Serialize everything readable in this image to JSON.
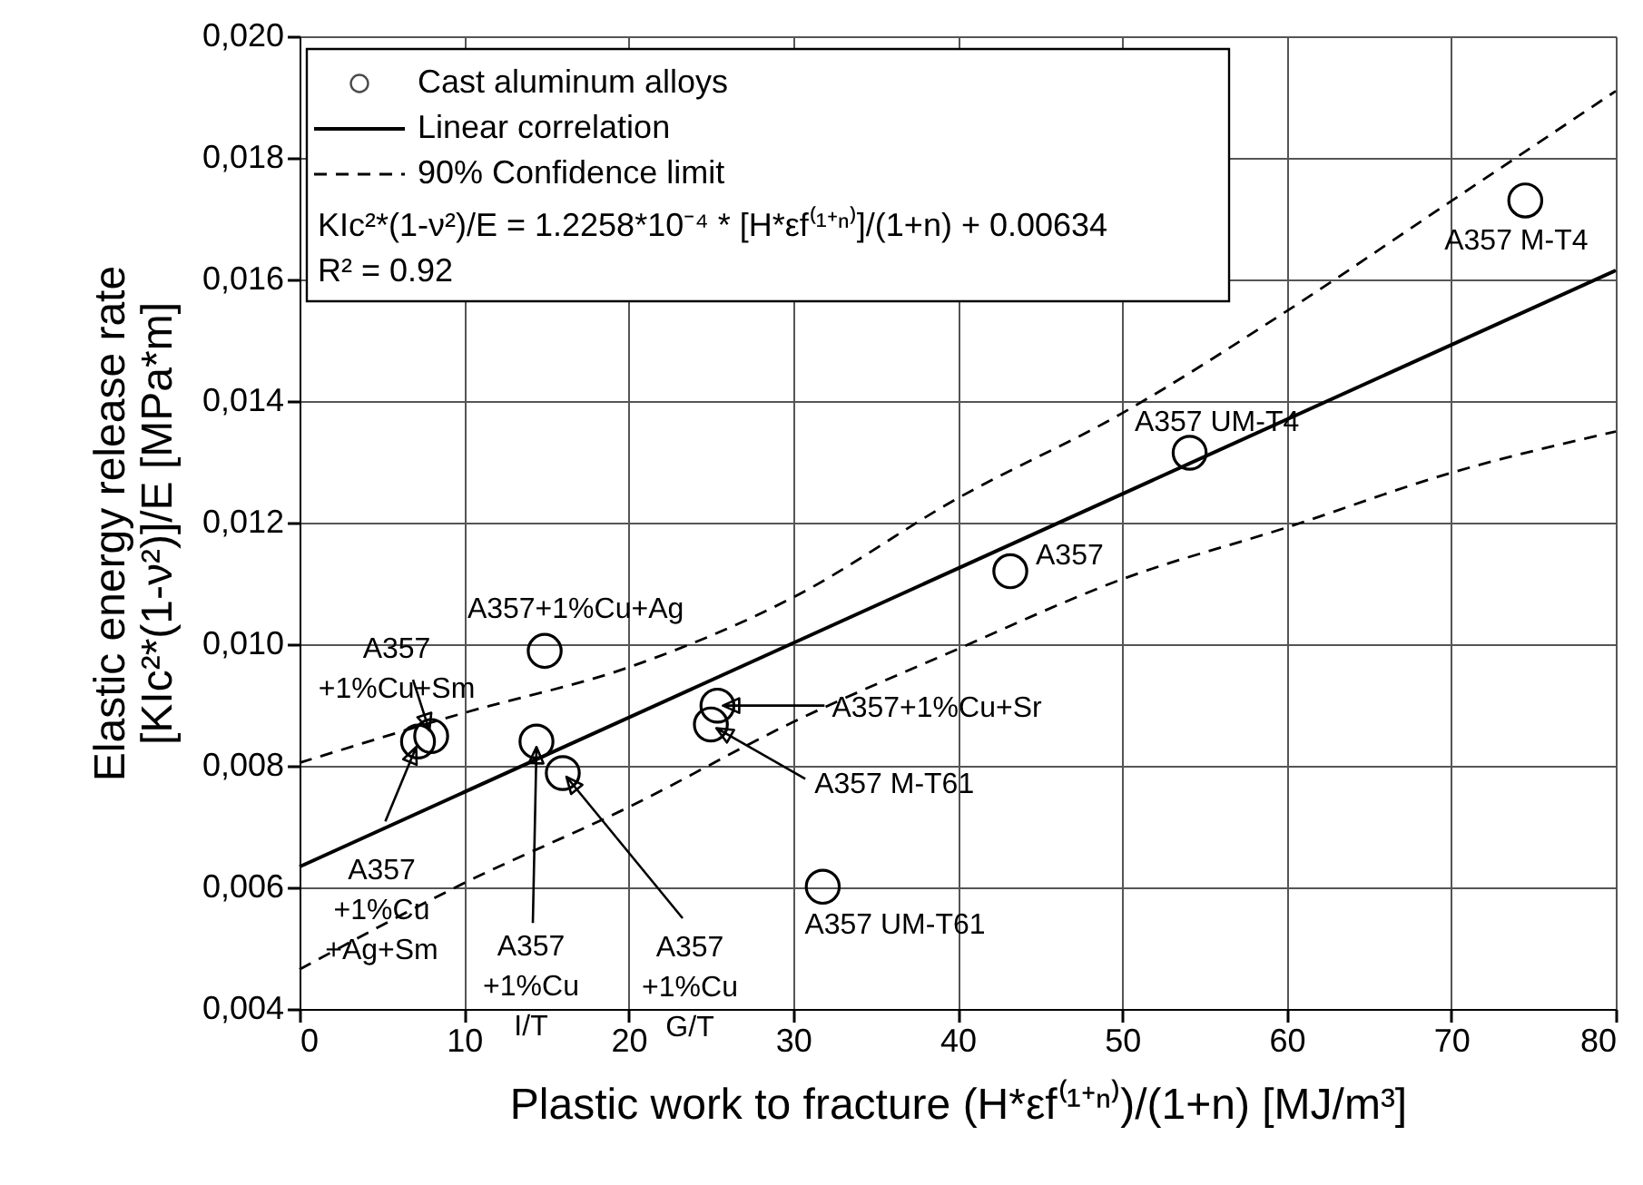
{
  "chart_data": {
    "type": "scatter",
    "xlabel": "Plastic work to fracture (H*εf⁽¹⁺ⁿ⁾)/(1+n) [MJ/m³]",
    "ylabel": "Elastic energy release rate\n[KIc²*(1-ν²)]/E [MPa*m]",
    "xlim": [
      0,
      80
    ],
    "xticks": [
      0,
      10,
      20,
      30,
      40,
      50,
      60,
      70,
      80
    ],
    "ylim": [
      0.004,
      0.02
    ],
    "yticks": [
      {
        "value": 0.004,
        "label": "0,004"
      },
      {
        "value": 0.006,
        "label": "0,006"
      },
      {
        "value": 0.008,
        "label": "0,008"
      },
      {
        "value": 0.01,
        "label": "0,010"
      },
      {
        "value": 0.012,
        "label": "0,012"
      },
      {
        "value": 0.014,
        "label": "0,014"
      },
      {
        "value": 0.016,
        "label": "0,016"
      },
      {
        "value": 0.018,
        "label": "0,018"
      },
      {
        "value": 0.02,
        "label": "0,020"
      }
    ],
    "grid": true,
    "legend": "top left",
    "series": [
      {
        "name": "Cast aluminum alloys",
        "marker": "circle",
        "color": "#000000",
        "x": [
          74.5,
          54.1,
          43.2,
          14.9,
          8.0,
          7.2,
          14.4,
          16.0,
          25.4,
          25.0,
          31.8
        ],
        "values": [
          0.0173,
          0.01315,
          0.0112,
          0.00989,
          0.00849,
          0.0084,
          0.0084,
          0.00788,
          0.00899,
          0.00868,
          0.00601
        ]
      },
      {
        "name": "Linear correlation",
        "type": "line",
        "marker": "none",
        "line_style": "solid",
        "color": "#000000",
        "x": [
          0,
          80
        ],
        "values": [
          0.00634,
          0.01615
        ]
      },
      {
        "name": "90% Confidence limit",
        "type": "line",
        "marker": "none",
        "line_style": "dashed",
        "color": "#000000",
        "x": [
          0,
          10,
          20,
          30,
          40,
          50,
          60,
          70,
          80
        ],
        "values": [
          0.00805,
          0.00887,
          0.00962,
          0.01077,
          0.0124,
          0.0138,
          0.01548,
          0.01729,
          0.0191
        ]
      },
      {
        "type": "line",
        "marker": "none",
        "line_style": "dashed",
        "color": "#000000",
        "x": [
          0,
          10,
          20,
          30,
          40,
          50,
          60,
          70,
          80
        ],
        "values": [
          0.00465,
          0.00607,
          0.00732,
          0.00872,
          0.00992,
          0.01107,
          0.01192,
          0.01282,
          0.0135
        ]
      }
    ],
    "annotations": [
      {
        "text": "A357 M-T4",
        "x": 74.5,
        "y": 0.0173
      },
      {
        "text": "A357 UM-T4",
        "x": 54.1,
        "y": 0.01315
      },
      {
        "text": "A357",
        "x": 43.2,
        "y": 0.0112
      },
      {
        "text": "A357+1%Cu+Ag",
        "x": 14.9,
        "y": 0.00989
      },
      {
        "text": "A357\n+1%Cu+Sm",
        "x": 8.0,
        "y": 0.00849
      },
      {
        "text": "A357\n+1%Cu\n+Ag+Sm",
        "x": 7.2,
        "y": 0.0084
      },
      {
        "text": "A357\n+1%Cu\nI/T",
        "x": 14.4,
        "y": 0.0084
      },
      {
        "text": "A357\n+1%Cu\nG/T",
        "x": 16.0,
        "y": 0.00788
      },
      {
        "text": "A357+1%Cu+Sr",
        "x": 25.4,
        "y": 0.00899
      },
      {
        "text": "A357 M-T61",
        "x": 25.0,
        "y": 0.00868
      },
      {
        "text": "A357 UM-T61",
        "x": 31.8,
        "y": 0.00601
      },
      "KIc²*(1-ν²)/E = 1.2258*10⁻⁴ * [H*εf⁽¹⁺ⁿ⁾]/(1+n) + 0.00634",
      "R² = 0.92"
    ]
  }
}
